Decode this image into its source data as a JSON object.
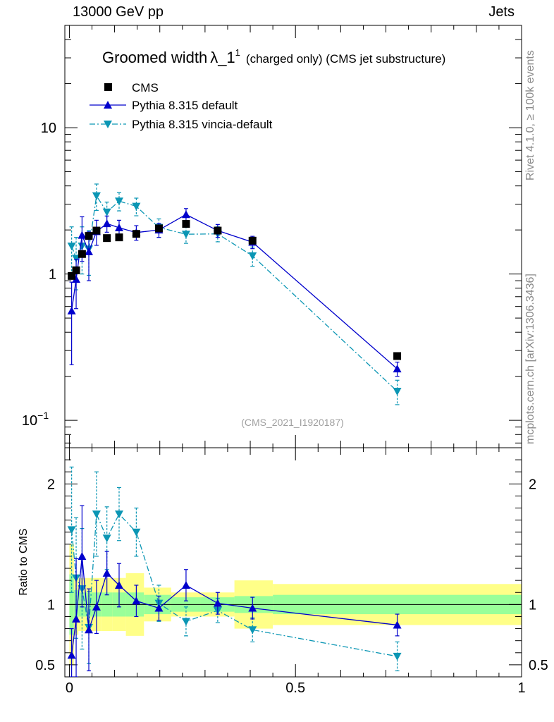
{
  "header": {
    "left": "13000 GeV pp",
    "right": "Jets"
  },
  "side_labels": {
    "top": "Rivet 4.1.0, ≥ 100k events",
    "bottom": "mcplots.cern.ch [arXiv:1306.3436]"
  },
  "watermark": "(CMS_2021_I1920187)",
  "colors": {
    "cms": "#000000",
    "default": "#0000cc",
    "vincia": "#0b96b4",
    "band_inner": "#99ff99",
    "band_outer": "#ffff88"
  },
  "chart_data": {
    "type": "line",
    "title_main": "Groomed width",
    "title_symbol": "λ_1",
    "title_sup": "1",
    "title_sub": "(charged only) (CMS jet substructure)",
    "xlim": [
      -0.01,
      1.0
    ],
    "ylim_log": [
      0.065,
      50
    ],
    "ratio_ylim": [
      0.4,
      2.3
    ],
    "ratio_ylabel": "Ratio to CMS",
    "x_ticks": [
      {
        "v": 0,
        "label": "0"
      },
      {
        "v": 0.5,
        "label": "0.5"
      },
      {
        "v": 1,
        "label": "1"
      }
    ],
    "y_ticks": [
      {
        "v": 0.1,
        "label": "10",
        "sup": "−1"
      },
      {
        "v": 1,
        "label": "1",
        "sup": ""
      },
      {
        "v": 10,
        "label": "10",
        "sup": ""
      }
    ],
    "ratio_ticks": [
      {
        "v": 0.5,
        "label": "0.5"
      },
      {
        "v": 1,
        "label": "1"
      },
      {
        "v": 2,
        "label": "2"
      }
    ],
    "legend": [
      "CMS",
      "Pythia 8.315 default",
      "Pythia 8.315 vincia-default"
    ],
    "bins": [
      [
        0.0,
        0.01
      ],
      [
        0.01,
        0.02
      ],
      [
        0.02,
        0.035
      ],
      [
        0.035,
        0.05
      ],
      [
        0.05,
        0.07
      ],
      [
        0.07,
        0.095
      ],
      [
        0.095,
        0.125
      ],
      [
        0.125,
        0.165
      ],
      [
        0.165,
        0.225
      ],
      [
        0.225,
        0.29
      ],
      [
        0.29,
        0.365
      ],
      [
        0.365,
        0.45
      ],
      [
        0.45,
        1.0
      ]
    ],
    "cms": {
      "name": "CMS",
      "x": [
        0.005,
        0.015,
        0.028,
        0.043,
        0.06,
        0.083,
        0.11,
        0.148,
        0.198,
        0.258,
        0.328,
        0.405,
        0.725
      ],
      "y": [
        0.97,
        1.06,
        1.37,
        1.82,
        1.98,
        1.76,
        1.78,
        1.88,
        2.05,
        2.2,
        1.98,
        1.69,
        0.275
      ]
    },
    "series": [
      {
        "name": "Pythia 8.315 default",
        "x": [
          0.005,
          0.015,
          0.028,
          0.043,
          0.06,
          0.083,
          0.11,
          0.148,
          0.198,
          0.258,
          0.328,
          0.405,
          0.725
        ],
        "y": [
          0.56,
          0.92,
          1.84,
          1.42,
          1.95,
          2.21,
          2.07,
          1.92,
          2.0,
          2.55,
          1.98,
          1.65,
          0.225
        ],
        "err": [
          0.32,
          0.34,
          0.62,
          0.52,
          0.38,
          0.28,
          0.26,
          0.22,
          0.22,
          0.25,
          0.2,
          0.16,
          0.025
        ]
      },
      {
        "name": "Pythia 8.315 vincia-default",
        "x": [
          0.005,
          0.015,
          0.028,
          0.043,
          0.06,
          0.083,
          0.11,
          0.148,
          0.198,
          0.258,
          0.328,
          0.405,
          0.725
        ],
        "y": [
          1.55,
          1.28,
          1.55,
          1.48,
          3.42,
          2.65,
          3.15,
          2.9,
          2.08,
          1.87,
          1.88,
          1.33,
          0.158
        ],
        "err": [
          0.55,
          0.5,
          0.55,
          0.5,
          0.7,
          0.45,
          0.45,
          0.4,
          0.3,
          0.25,
          0.22,
          0.2,
          0.03
        ]
      }
    ],
    "ratio": {
      "default": {
        "y": [
          0.58,
          0.88,
          1.4,
          0.79,
          0.98,
          1.26,
          1.16,
          1.03,
          0.97,
          1.16,
          1.01,
          0.97,
          0.83
        ],
        "err": [
          0.22,
          0.5,
          0.42,
          0.34,
          0.22,
          0.18,
          0.18,
          0.13,
          0.1,
          0.13,
          0.09,
          0.09,
          0.09
        ]
      },
      "vincia": {
        "y": [
          1.62,
          1.22,
          1.13,
          0.81,
          1.75,
          1.55,
          1.75,
          1.6,
          1.01,
          0.86,
          0.95,
          0.79,
          0.57
        ],
        "err": [
          0.52,
          0.5,
          0.5,
          0.3,
          0.35,
          0.26,
          0.22,
          0.2,
          0.15,
          0.12,
          0.1,
          0.1,
          0.12
        ]
      },
      "band_inner": [
        0.25,
        0.12,
        0.1,
        0.1,
        0.1,
        0.1,
        0.1,
        0.1,
        0.08,
        0.06,
        0.06,
        0.07,
        0.08
      ],
      "band_outer": [
        0.5,
        0.25,
        0.22,
        0.22,
        0.22,
        0.22,
        0.22,
        0.26,
        0.14,
        0.1,
        0.1,
        0.2,
        0.17
      ]
    }
  }
}
